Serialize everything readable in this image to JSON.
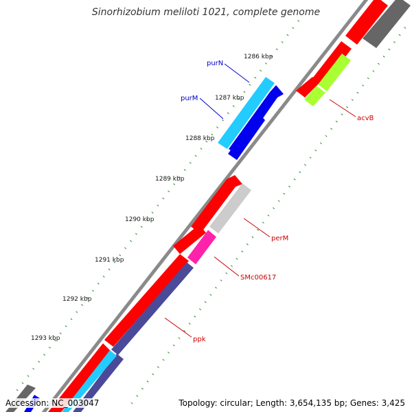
{
  "title": "Sinorhizobium meliloti 1021, complete genome",
  "footer": {
    "accession": "Accession: NC_003047",
    "topology": "Topology: circular; Length: 3,654,135 bp; Genes: 3,425"
  },
  "ticks": [
    "1286 kbp",
    "1287 kbp",
    "1288 kbp",
    "1289 kbp",
    "1290 kbp",
    "1291 kbp",
    "1292 kbp",
    "1293 kbp"
  ],
  "genes": [
    {
      "name": "purN",
      "color": "#0000CC"
    },
    {
      "name": "purM",
      "color": "#0000CC"
    },
    {
      "name": "acvB",
      "color": "#CC0000"
    },
    {
      "name": "perM",
      "color": "#CC0000"
    },
    {
      "name": "SMc00617",
      "color": "#CC0000"
    },
    {
      "name": "ppk",
      "color": "#CC0000"
    }
  ],
  "colors": {
    "backbone": "#8a8a8a",
    "red": "#ff0000",
    "dark_gray": "#666666",
    "light_gray": "#cccccc",
    "lime": "#aaff33",
    "cyan": "#22ccff",
    "blue": "#0000ee",
    "magenta": "#ff22aa",
    "slate": "#4a4a99",
    "tick": "#228822"
  }
}
